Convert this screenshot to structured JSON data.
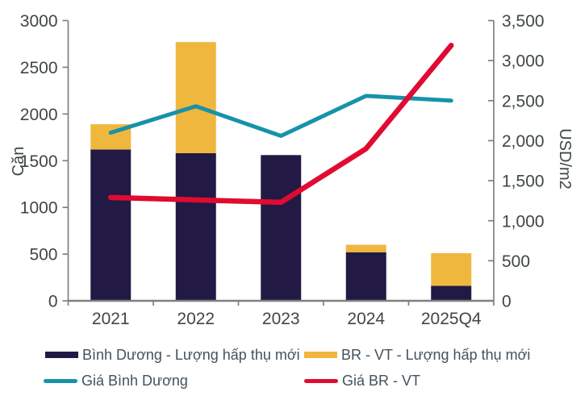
{
  "chart_data": {
    "type": "bar",
    "subtype": "stacked-bar-with-lines",
    "categories": [
      "2021",
      "2022",
      "2023",
      "2024",
      "2025Q4"
    ],
    "bar_series": [
      {
        "name": "Bình Dương - Lượng hấp thụ mới",
        "axis": "left",
        "color": "#221A44",
        "values": [
          1620,
          1580,
          1560,
          520,
          160
        ]
      },
      {
        "name": "BR - VT - Lượng hấp thụ mới",
        "axis": "left",
        "color": "#F0B73E",
        "values": [
          270,
          1190,
          0,
          80,
          350
        ]
      }
    ],
    "line_series": [
      {
        "name": "Giá Bình Dương",
        "axis": "right",
        "color": "#1792A9",
        "values": [
          2100,
          2430,
          2060,
          2560,
          2500
        ]
      },
      {
        "name": "Giá BR - VT",
        "axis": "right",
        "color": "#E10A30",
        "values": [
          1290,
          1260,
          1230,
          1900,
          3190
        ]
      }
    ],
    "left_axis": {
      "label": "Căn",
      "min": 0,
      "max": 3000,
      "step": 500,
      "thousands_separator": false
    },
    "right_axis": {
      "label": "USD/m2",
      "min": 0,
      "max": 3500,
      "step": 500,
      "thousands_separator": true
    },
    "title": "",
    "grid": false,
    "legend_position": "bottom"
  },
  "colors": {
    "axis_line": "#808080",
    "tick_text": "#3F4647",
    "background": "#FFFFFF"
  }
}
